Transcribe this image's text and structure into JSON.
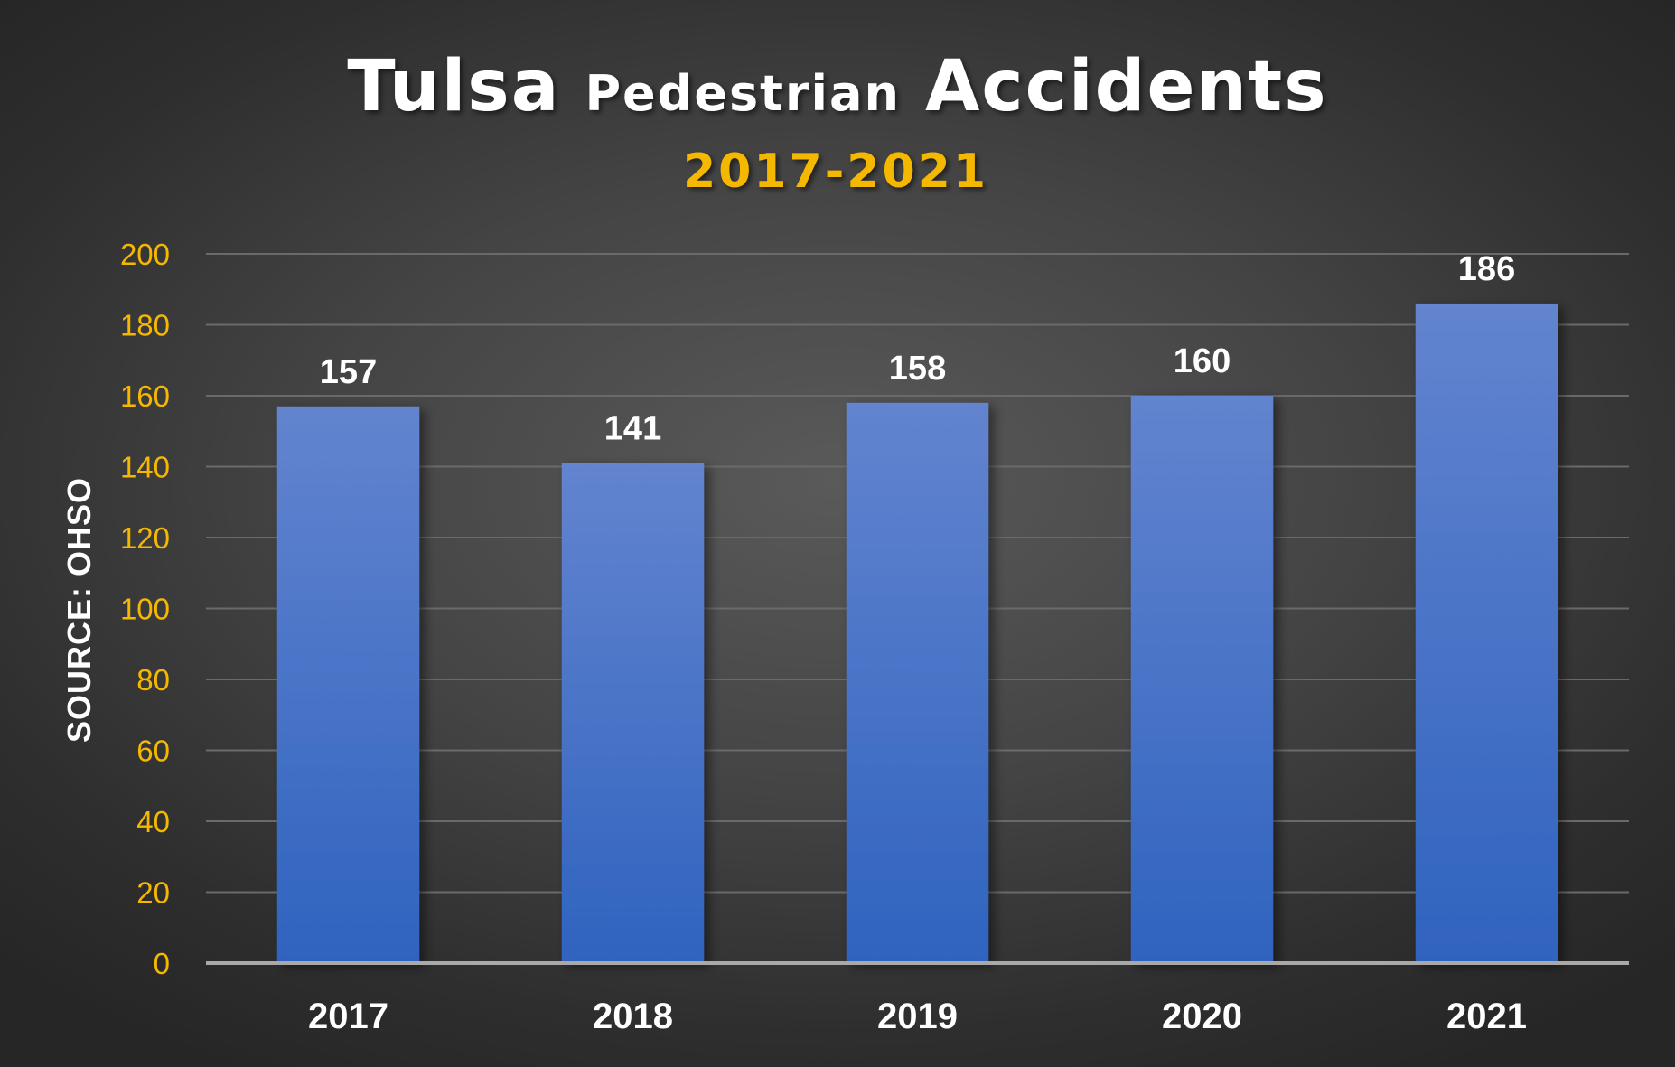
{
  "chart_data": {
    "type": "bar",
    "title": {
      "part1": "Tulsa",
      "part2": "Pedestrian",
      "part3": "Accidents"
    },
    "subtitle": "2017-2021",
    "ylabel": "SOURCE: OHSO",
    "xlabel": "",
    "categories": [
      "2017",
      "2018",
      "2019",
      "2020",
      "2021"
    ],
    "values": [
      157,
      141,
      158,
      160,
      186
    ],
    "data_labels": [
      "157",
      "141",
      "158",
      "160",
      "186"
    ],
    "ylim": [
      0,
      200
    ],
    "yticks": [
      "0",
      "20",
      "40",
      "60",
      "80",
      "100",
      "120",
      "140",
      "160",
      "180",
      "200"
    ],
    "grid": true,
    "legend": "none",
    "colors": {
      "bar_top": "#6384cf",
      "bar_bottom": "#2f63bf",
      "tick_color": "#f5b800",
      "subtitle_color": "#f5b800",
      "label_color": "#ffffff"
    }
  }
}
